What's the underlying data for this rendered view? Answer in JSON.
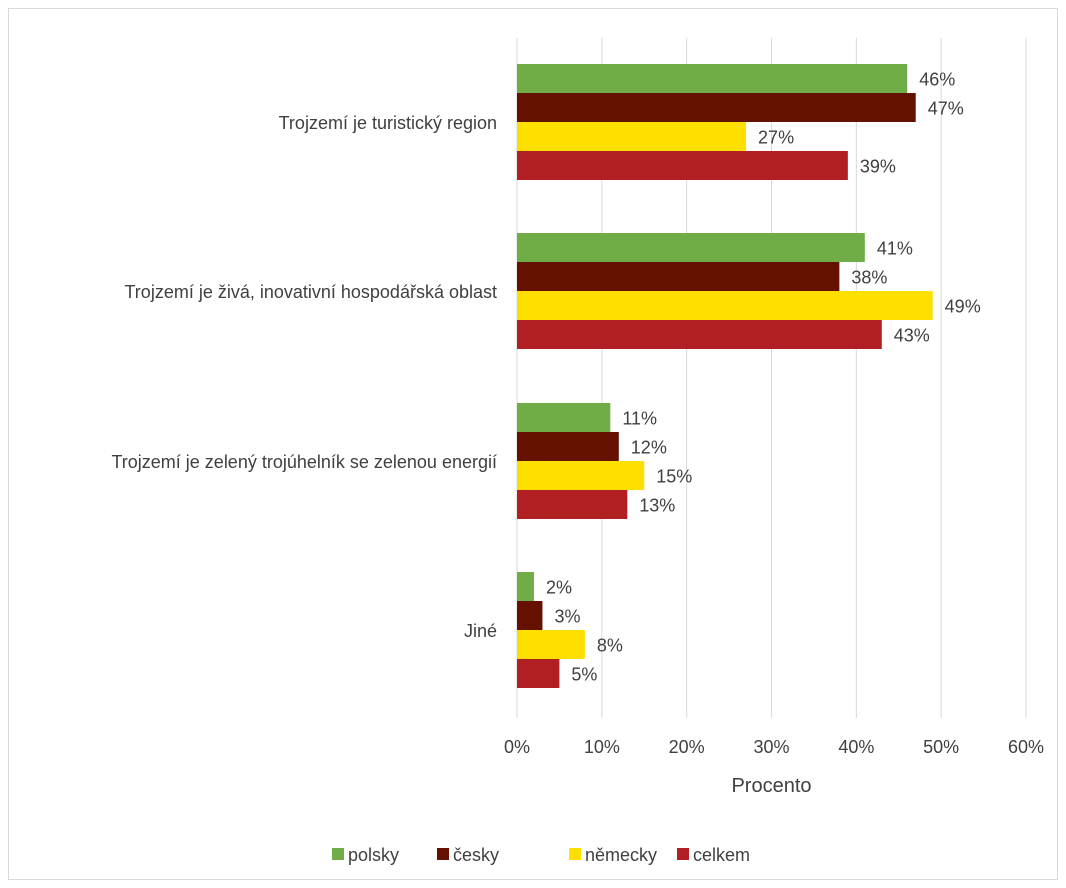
{
  "chart_data": {
    "type": "bar",
    "orientation": "horizontal",
    "categories": [
      "Trojzemí je turistický region",
      "Trojzemí je živá, inovativní hospodářská oblast",
      "Trojzemí je zelený trojúhelník se zelenou energií",
      "Jiné"
    ],
    "series": [
      {
        "name": "polsky",
        "color": "#70ad47",
        "values": [
          46,
          41,
          11,
          2
        ]
      },
      {
        "name": "česky",
        "color": "#641100",
        "values": [
          47,
          38,
          12,
          3
        ]
      },
      {
        "name": "německy",
        "color": "#ffdf00",
        "values": [
          27,
          49,
          15,
          8
        ]
      },
      {
        "name": "celkem",
        "color": "#b11f22",
        "values": [
          39,
          43,
          13,
          5
        ]
      }
    ],
    "xlabel": "Procento",
    "xlim": [
      0,
      60
    ],
    "xticks": [
      0,
      10,
      20,
      30,
      40,
      50,
      60
    ],
    "tick_suffix": "%",
    "value_suffix": "%",
    "grid": true,
    "legend_position": "bottom"
  }
}
